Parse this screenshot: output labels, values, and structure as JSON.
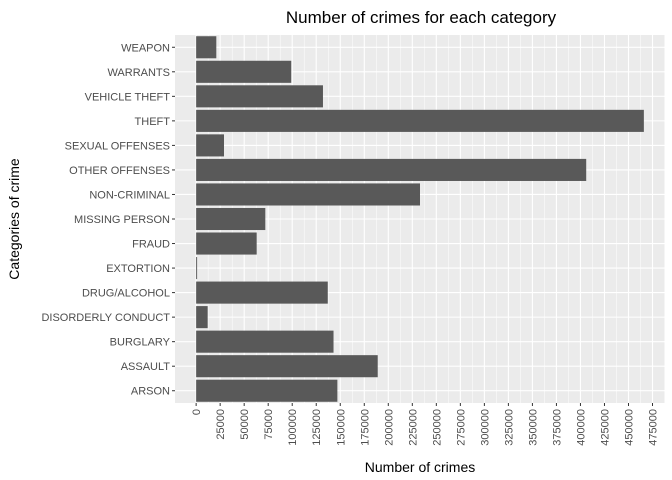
{
  "chart_data": {
    "type": "bar",
    "orientation": "horizontal",
    "title": "Number of crimes for each category",
    "xlabel": "Number of crimes",
    "ylabel": "Categories of crime",
    "categories": [
      "ARSON",
      "ASSAULT",
      "BURGLARY",
      "DISORDERLY CONDUCT",
      "DRUG/ALCOHOL",
      "EXTORTION",
      "FRAUD",
      "MISSING PERSON",
      "NON-CRIMINAL",
      "OTHER OFFENSES",
      "SEXUAL OFFENSES",
      "THEFT",
      "VEHICLE THEFT",
      "WARRANTS",
      "WEAPON"
    ],
    "values": [
      147000,
      189000,
      143000,
      12000,
      137000,
      1000,
      63000,
      72000,
      233000,
      406000,
      29000,
      466000,
      132000,
      99000,
      21000
    ],
    "xticks": [
      0,
      25000,
      50000,
      75000,
      100000,
      125000,
      150000,
      175000,
      200000,
      225000,
      250000,
      275000,
      300000,
      325000,
      350000,
      375000,
      400000,
      425000,
      450000,
      475000
    ],
    "xlim": [
      -22000,
      488000
    ],
    "grid": true,
    "bar_color": "#595959",
    "panel_color": "#ebebeb",
    "grid_color": "#ffffff"
  }
}
